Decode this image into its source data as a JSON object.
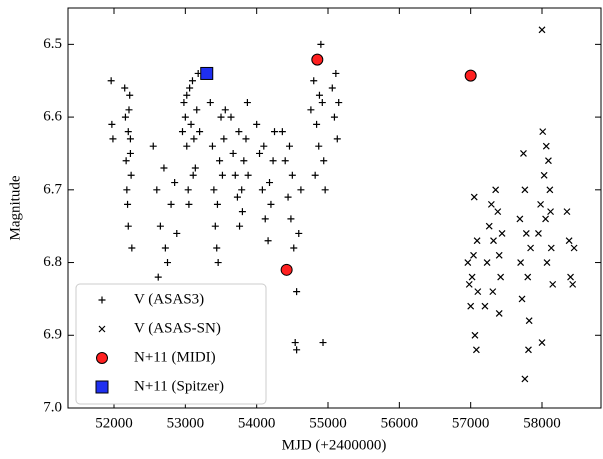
{
  "chart_data": {
    "type": "scatter",
    "x_label": "MJD (+2400000)",
    "y_label": "Magnitude",
    "xlim": [
      51355,
      58827
    ],
    "ylim": [
      6.45,
      7.0
    ],
    "y_inverted": true,
    "xticks": [
      52000,
      53000,
      54000,
      55000,
      56000,
      57000,
      58000
    ],
    "yticks": [
      6.5,
      6.6,
      6.7,
      6.8,
      6.9,
      {
        "value": 7,
        "label": "7.0"
      }
    ],
    "legend": "lower left",
    "series": [
      {
        "name": "V (ASAS3)",
        "marker": "plus",
        "color": "#000000",
        "x": [
          51960,
          51970,
          51985,
          52150,
          52160,
          52170,
          52180,
          52190,
          52200,
          52210,
          52220,
          52230,
          52240,
          52250,
          52200,
          52230,
          52550,
          52600,
          52650,
          52700,
          52750,
          52800,
          52850,
          52720,
          52620,
          52880,
          52960,
          52980,
          53000,
          53020,
          53040,
          53060,
          53080,
          53100,
          53120,
          53140,
          53160,
          53180,
          53200,
          53050,
          53110,
          53020,
          53350,
          53380,
          53400,
          53420,
          53440,
          53460,
          53480,
          53500,
          53450,
          53520,
          53540,
          53560,
          53640,
          53670,
          53700,
          53730,
          53760,
          53790,
          53820,
          53850,
          53870,
          53750,
          53800,
          53880,
          54000,
          54040,
          54080,
          54120,
          54160,
          54200,
          54230,
          54250,
          54100,
          54180,
          54360,
          54400,
          54440,
          54480,
          54520,
          54560,
          54540,
          54560,
          54590,
          54620,
          54500,
          54460,
          54760,
          54800,
          54840,
          54870,
          54900,
          54920,
          54940,
          54960,
          54880,
          54930,
          54820,
          55060,
          55090,
          55110,
          55130,
          55150
        ],
        "y": [
          6.55,
          6.61,
          6.63,
          6.56,
          6.6,
          6.66,
          6.7,
          6.72,
          6.75,
          6.59,
          6.57,
          6.63,
          6.68,
          6.78,
          6.62,
          6.65,
          6.64,
          6.7,
          6.75,
          6.67,
          6.8,
          6.72,
          6.69,
          6.78,
          6.82,
          6.76,
          6.62,
          6.58,
          6.6,
          6.64,
          6.7,
          6.56,
          6.61,
          6.55,
          6.63,
          6.67,
          6.59,
          6.54,
          6.62,
          6.72,
          6.68,
          6.57,
          6.58,
          6.64,
          6.7,
          6.75,
          6.78,
          6.8,
          6.66,
          6.6,
          6.72,
          6.68,
          6.63,
          6.59,
          6.6,
          6.65,
          6.68,
          6.71,
          6.75,
          6.7,
          6.66,
          6.63,
          6.58,
          6.62,
          6.73,
          6.68,
          6.61,
          6.65,
          6.7,
          6.74,
          6.77,
          6.72,
          6.66,
          6.62,
          6.64,
          6.69,
          6.62,
          6.66,
          6.71,
          6.74,
          6.78,
          6.84,
          6.91,
          6.92,
          6.76,
          6.7,
          6.68,
          6.64,
          6.59,
          6.55,
          6.61,
          6.64,
          6.5,
          6.58,
          6.66,
          6.7,
          6.57,
          6.91,
          6.68,
          6.56,
          6.6,
          6.54,
          6.63,
          6.58
        ]
      },
      {
        "name": "V (ASAS-SN)",
        "marker": "x",
        "color": "#000000",
        "x": [
          56960,
          56980,
          57000,
          57020,
          57040,
          57060,
          57080,
          57100,
          57050,
          57090,
          57200,
          57230,
          57260,
          57290,
          57320,
          57350,
          57380,
          57400,
          57420,
          57440,
          57310,
          57400,
          57700,
          57720,
          57740,
          57760,
          57780,
          57800,
          57820,
          57840,
          57760,
          57690,
          57810,
          57950,
          57980,
          58000,
          58010,
          58030,
          58050,
          58070,
          58090,
          58110,
          58130,
          58150,
          58000,
          58060,
          58120,
          58350,
          58380,
          58400,
          58430,
          58450
        ],
        "y": [
          6.8,
          6.83,
          6.86,
          6.82,
          6.79,
          6.9,
          6.92,
          6.84,
          6.71,
          6.77,
          6.86,
          6.8,
          6.75,
          6.72,
          6.77,
          6.7,
          6.73,
          6.79,
          6.82,
          6.76,
          6.84,
          6.87,
          6.8,
          6.85,
          6.65,
          6.7,
          6.76,
          6.82,
          6.88,
          6.78,
          6.96,
          6.74,
          6.92,
          6.76,
          6.72,
          6.48,
          6.62,
          6.68,
          6.74,
          6.8,
          6.66,
          6.7,
          6.78,
          6.83,
          6.91,
          6.64,
          6.73,
          6.73,
          6.77,
          6.82,
          6.83,
          6.78
        ]
      },
      {
        "name": "N+11 (MIDI)",
        "marker": "circle",
        "color": "#ff2020",
        "x": [
          54850,
          57000,
          54420
        ],
        "y": [
          6.521,
          6.543,
          6.81
        ]
      },
      {
        "name": "N+11 (Spitzer)",
        "marker": "square",
        "color": "#1f2ff0",
        "x": [
          53300
        ],
        "y": [
          6.54
        ]
      }
    ]
  }
}
